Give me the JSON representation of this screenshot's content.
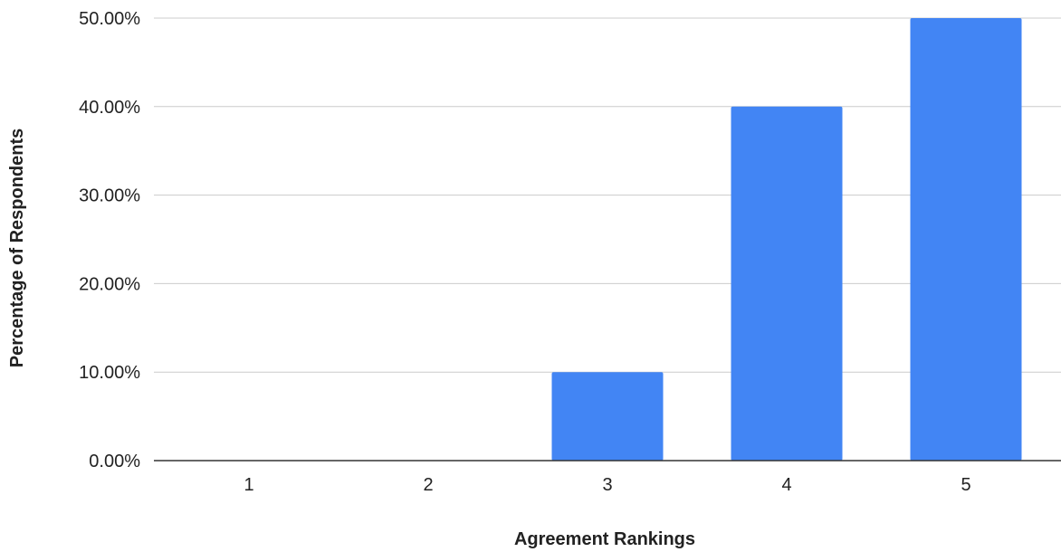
{
  "chart_data": {
    "type": "bar",
    "title": "",
    "xlabel": "Agreement Rankings",
    "ylabel": "Percentage of Respondents",
    "categories": [
      "1",
      "2",
      "3",
      "4",
      "5"
    ],
    "series": [
      {
        "values": [
          0,
          0,
          10,
          40,
          50
        ],
        "color": "#4285f4"
      }
    ],
    "ylim": [
      0,
      50
    ],
    "yticks": [
      0,
      10,
      20,
      30,
      40,
      50
    ],
    "ytick_labels": [
      "0.00%",
      "10.00%",
      "20.00%",
      "30.00%",
      "40.00%",
      "50.00%"
    ],
    "grid": true,
    "legend": "none"
  }
}
